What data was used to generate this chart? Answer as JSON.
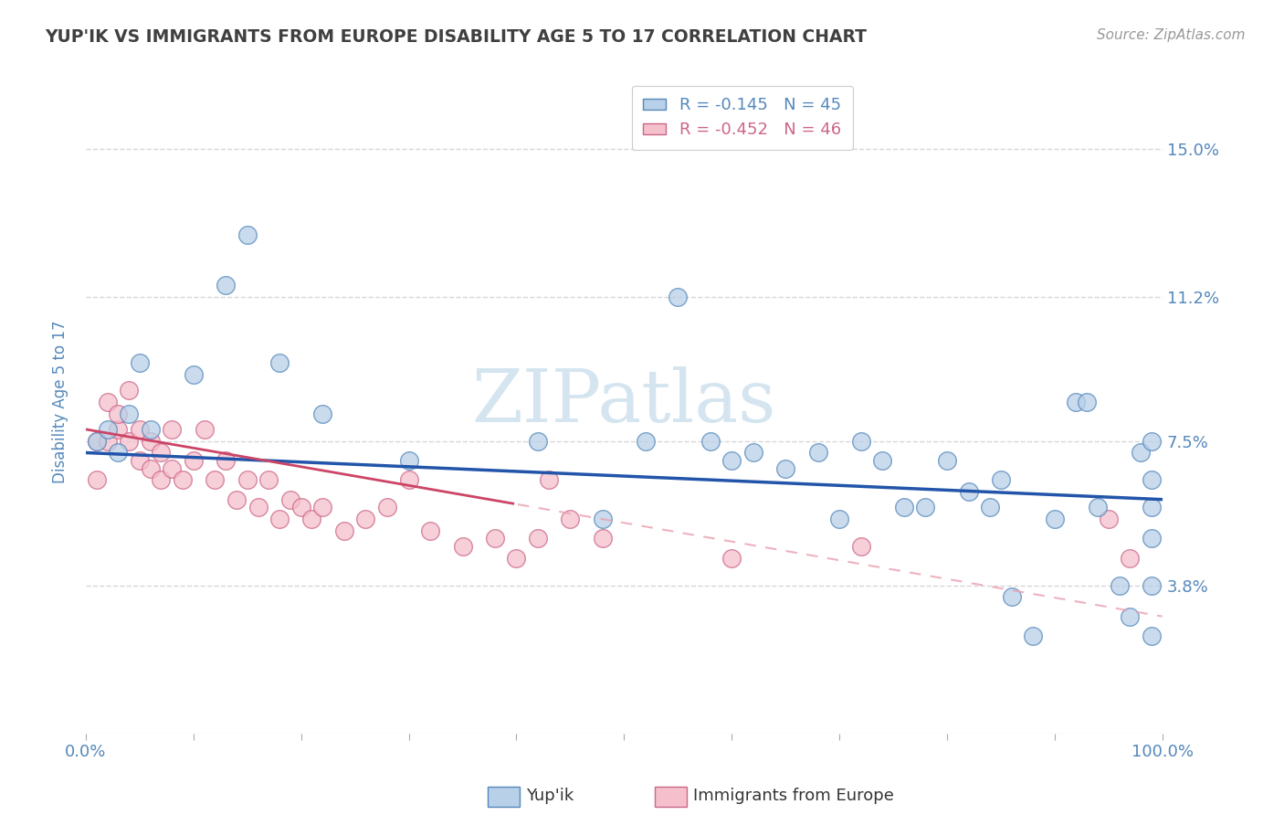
{
  "title": "YUP'IK VS IMMIGRANTS FROM EUROPE DISABILITY AGE 5 TO 17 CORRELATION CHART",
  "source_text": "Source: ZipAtlas.com",
  "ylabel": "Disability Age 5 to 17",
  "xlim": [
    0,
    100
  ],
  "ylim": [
    0,
    17.0
  ],
  "yticks": [
    3.8,
    7.5,
    11.2,
    15.0
  ],
  "legend_r1": "R = -0.145",
  "legend_n1": "N = 45",
  "legend_r2": "R = -0.452",
  "legend_n2": "N = 46",
  "series1_color": "#b8d0e8",
  "series1_edge": "#5588bb",
  "series2_color": "#f5c0cc",
  "series2_edge": "#cc6688",
  "trendline1_color": "#2255aa",
  "trendline2_color": "#cc4466",
  "trendline2_dash_color": "#e8a0b0",
  "watermark_color": "#d5e5f0",
  "background_color": "#ffffff",
  "grid_color": "#cccccc",
  "title_color": "#404040",
  "axis_label_color": "#5588bb",
  "right_label_color": "#5588bb",
  "yup_ik_x": [
    1,
    2,
    3,
    4,
    5,
    6,
    10,
    13,
    15,
    18,
    22,
    30,
    42,
    48,
    52,
    55,
    58,
    60,
    62,
    65,
    68,
    70,
    72,
    74,
    76,
    78,
    80,
    82,
    84,
    85,
    86,
    88,
    90,
    92,
    93,
    94,
    96,
    97,
    98,
    99,
    99,
    99,
    99,
    99,
    99
  ],
  "yup_ik_y": [
    7.5,
    7.8,
    7.2,
    8.2,
    9.5,
    7.8,
    9.2,
    11.5,
    12.8,
    9.5,
    8.2,
    7.0,
    7.5,
    5.5,
    7.5,
    11.2,
    7.5,
    7.0,
    7.2,
    6.8,
    7.2,
    5.5,
    7.5,
    7.0,
    5.8,
    5.8,
    7.0,
    6.2,
    5.8,
    6.5,
    3.5,
    2.5,
    5.5,
    8.5,
    8.5,
    5.8,
    3.8,
    3.0,
    7.2,
    7.5,
    6.5,
    5.8,
    5.0,
    3.8,
    2.5
  ],
  "immigrants_x": [
    1,
    1,
    2,
    2,
    3,
    3,
    4,
    4,
    5,
    5,
    6,
    6,
    7,
    7,
    8,
    8,
    9,
    10,
    11,
    12,
    13,
    14,
    15,
    16,
    17,
    18,
    19,
    20,
    21,
    22,
    24,
    26,
    28,
    30,
    32,
    35,
    38,
    40,
    42,
    43,
    45,
    48,
    60,
    72,
    95,
    97
  ],
  "immigrants_y": [
    6.5,
    7.5,
    7.5,
    8.5,
    7.8,
    8.2,
    7.5,
    8.8,
    7.0,
    7.8,
    7.5,
    6.8,
    7.2,
    6.5,
    6.8,
    7.8,
    6.5,
    7.0,
    7.8,
    6.5,
    7.0,
    6.0,
    6.5,
    5.8,
    6.5,
    5.5,
    6.0,
    5.8,
    5.5,
    5.8,
    5.2,
    5.5,
    5.8,
    6.5,
    5.2,
    4.8,
    5.0,
    4.5,
    5.0,
    6.5,
    5.5,
    5.0,
    4.5,
    4.8,
    5.5,
    4.5
  ],
  "trendline1_x_start": 0,
  "trendline1_x_end": 100,
  "trendline2_solid_x_end": 40,
  "trendline2_dash_x_end": 100
}
